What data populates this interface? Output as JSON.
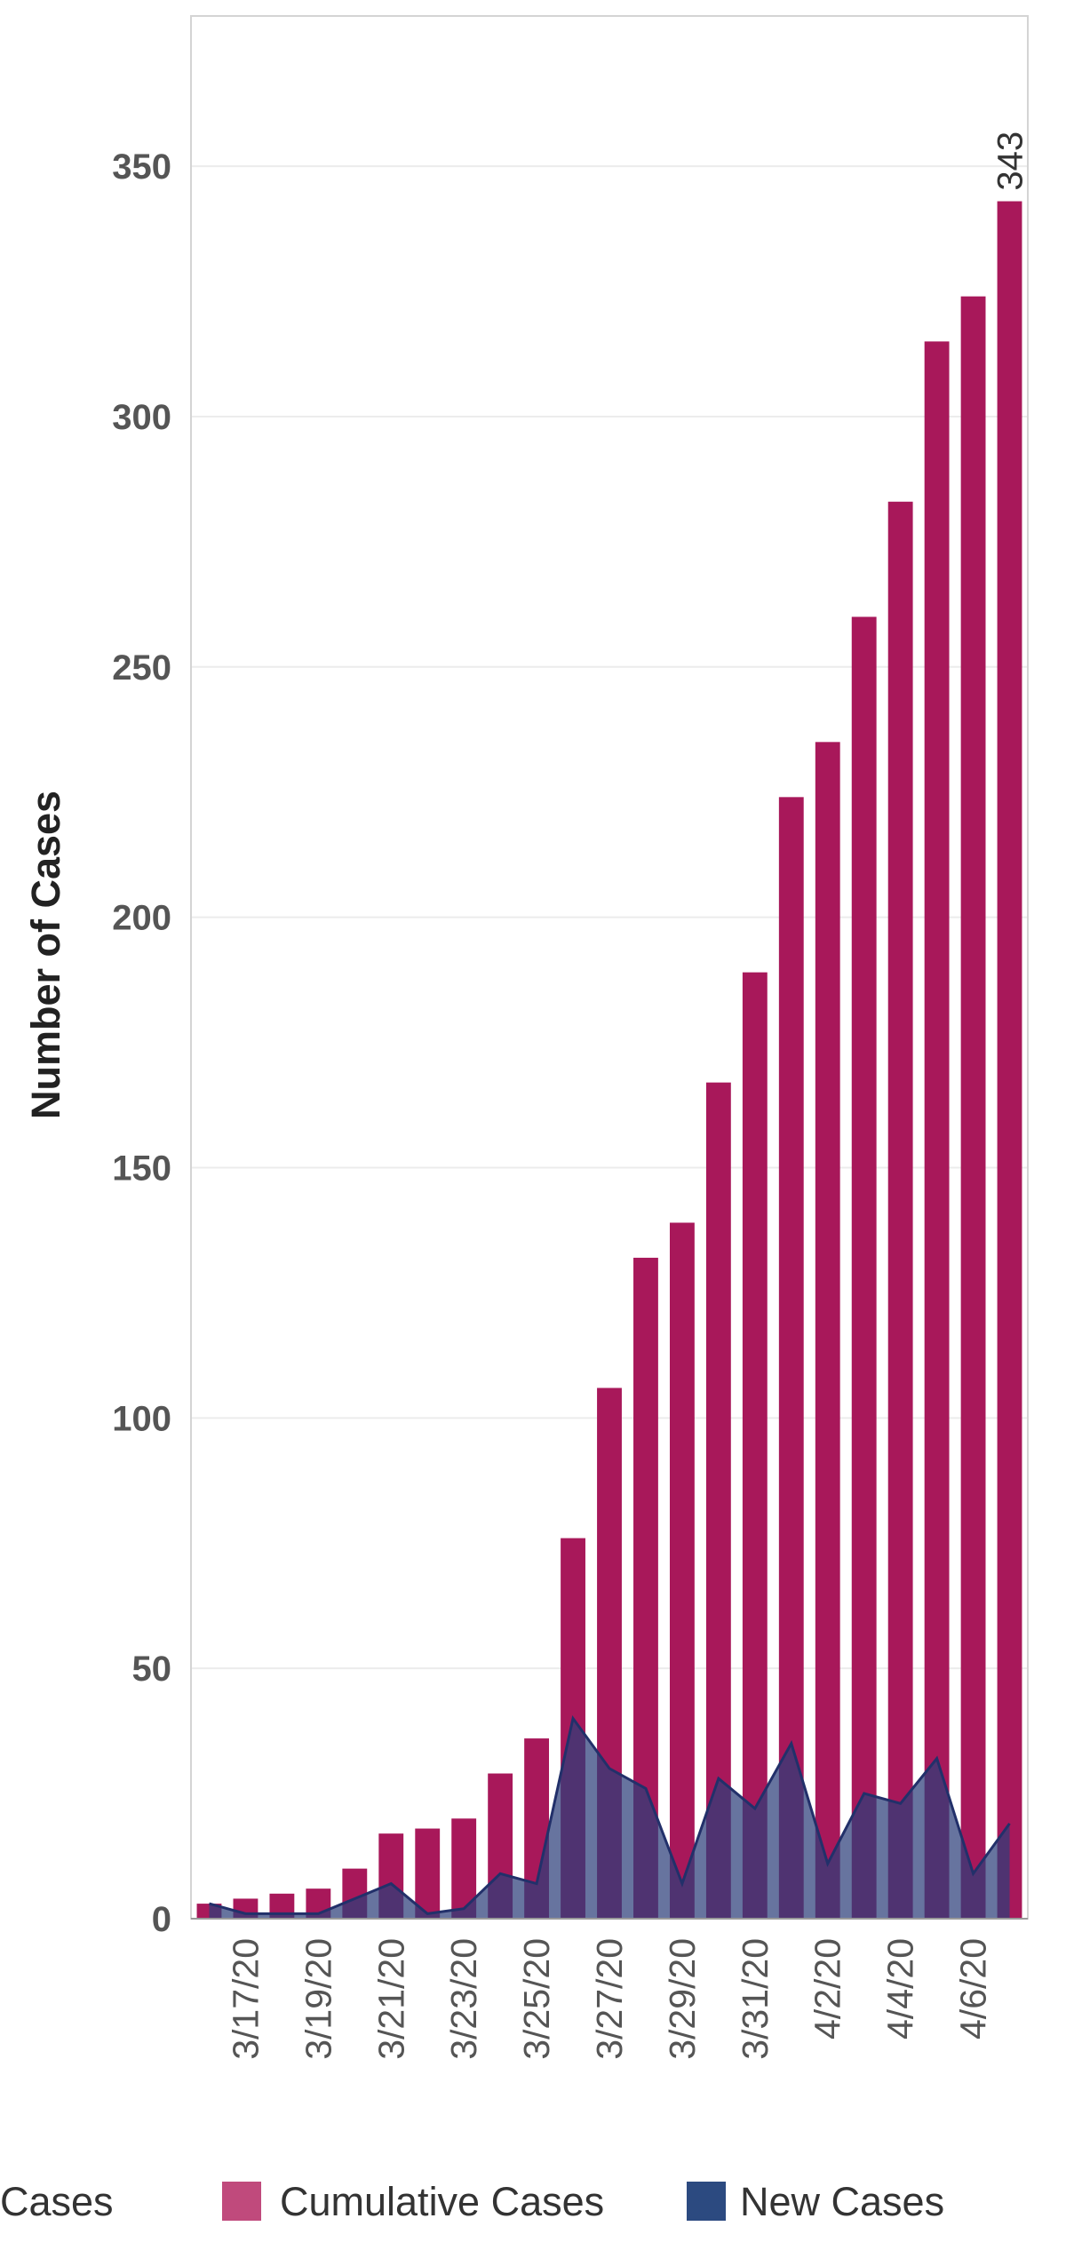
{
  "chart_data": {
    "type": "bar",
    "title": "",
    "xlabel": "",
    "ylabel": "Number of Cases",
    "ylim": [
      0,
      380
    ],
    "yticks": [
      0,
      50,
      100,
      150,
      200,
      250,
      300,
      350
    ],
    "grid": true,
    "categories": [
      "3/16/20",
      "3/17/20",
      "3/18/20",
      "3/19/20",
      "3/20/20",
      "3/21/20",
      "3/22/20",
      "3/23/20",
      "3/24/20",
      "3/25/20",
      "3/26/20",
      "3/27/20",
      "3/28/20",
      "3/29/20",
      "3/30/20",
      "3/31/20",
      "4/1/20",
      "4/2/20",
      "4/3/20",
      "4/4/20",
      "4/5/20",
      "4/6/20",
      "4/7/20"
    ],
    "x_tick_labels": [
      "3/17/20",
      "3/19/20",
      "3/21/20",
      "3/23/20",
      "3/25/20",
      "3/27/20",
      "3/29/20",
      "3/31/20",
      "4/2/20",
      "4/4/20",
      "4/6/20"
    ],
    "series": [
      {
        "name": "Cumulative Cases",
        "type": "bar",
        "color": "#a8185a",
        "values": [
          3,
          4,
          5,
          6,
          10,
          17,
          18,
          20,
          29,
          36,
          76,
          106,
          132,
          139,
          167,
          189,
          224,
          235,
          260,
          283,
          315,
          324,
          343
        ]
      },
      {
        "name": "New Cases",
        "type": "area",
        "color": "#2c3e7a",
        "values": [
          3,
          1,
          1,
          1,
          4,
          7,
          1,
          2,
          9,
          7,
          40,
          30,
          26,
          7,
          28,
          22,
          35,
          11,
          25,
          23,
          32,
          9,
          19
        ]
      }
    ],
    "data_labels": [
      {
        "category": "4/7/20",
        "text": "343"
      }
    ],
    "legend": {
      "position": "bottom",
      "title": "Cases",
      "items": [
        {
          "label": "Cumulative Cases",
          "color": "#c04a7c"
        },
        {
          "label": "New Cases",
          "color": "#2c4a80"
        }
      ]
    }
  }
}
